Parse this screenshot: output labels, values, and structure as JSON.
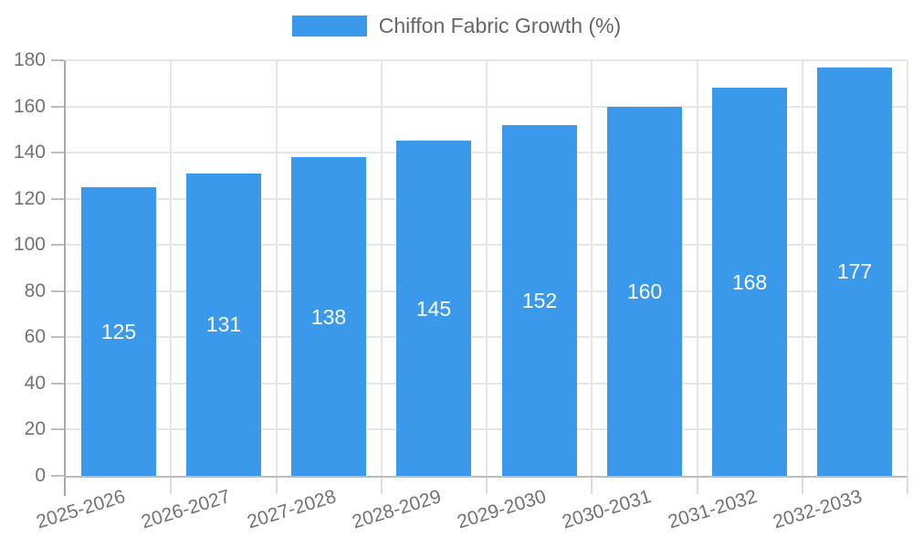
{
  "colors": {
    "bar": "#3b99ec",
    "grid": "#e6e6e6",
    "axis_y": "#a8a8a8",
    "axis_x": "#bdbdbd",
    "tick_y": "#bdbdbd",
    "tick_x": "#dcdcdc",
    "text": "#737373",
    "legend_text": "#666666",
    "value_label": "#ffffff",
    "background": "#ffffff"
  },
  "legend": {
    "position": "top",
    "label": "Chiffon Fabric Growth (%)"
  },
  "chart_data": {
    "type": "bar",
    "title": "",
    "xlabel": "",
    "ylabel": "",
    "categories": [
      "2025-2026",
      "2026-2027",
      "2027-2028",
      "2028-2029",
      "2029-2030",
      "2030-2031",
      "2031-2032",
      "2032-2033"
    ],
    "series": [
      {
        "name": "Chiffon Fabric Growth (%)",
        "color": "#3b99ec",
        "values": [
          125,
          131,
          138,
          145,
          152,
          160,
          168,
          177
        ]
      }
    ],
    "ylim": [
      0,
      180
    ],
    "ytick_step": 20,
    "ytick_labels": [
      "0",
      "20",
      "40",
      "60",
      "80",
      "100",
      "120",
      "140",
      "160",
      "180"
    ],
    "grid": true,
    "legend_position": "top-center",
    "xtick_rotation_deg": -17,
    "value_labels_position": "inside-middle"
  }
}
